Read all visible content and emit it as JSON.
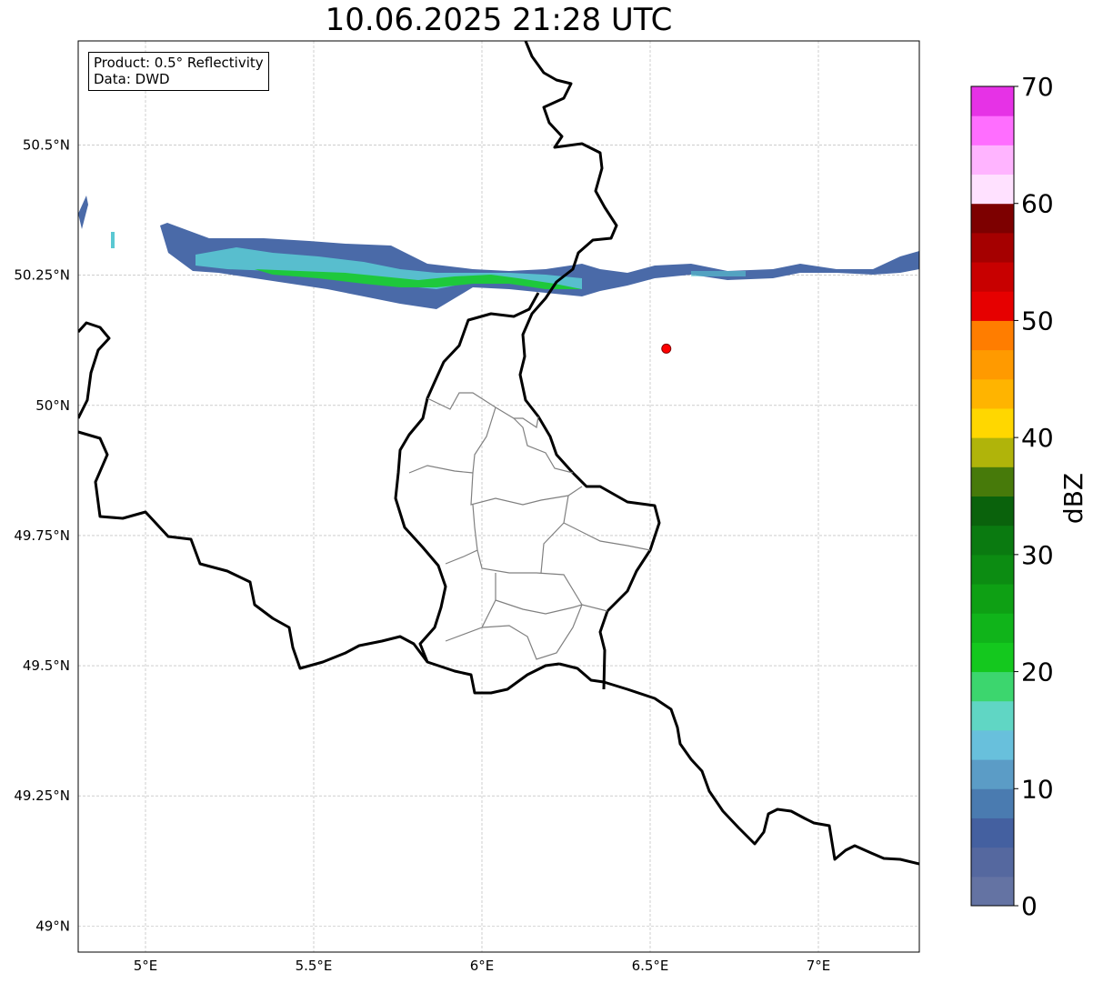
{
  "title": "10.06.2025 21:28 UTC",
  "info": {
    "product": "Product: 0.5° Reflectivity",
    "data_source": "Data: DWD"
  },
  "axes": {
    "lon_ticks": [
      {
        "value": 5.0,
        "label": "5°E"
      },
      {
        "value": 5.5,
        "label": "5.5°E"
      },
      {
        "value": 6.0,
        "label": "6°E"
      },
      {
        "value": 6.5,
        "label": "6.5°E"
      },
      {
        "value": 7.0,
        "label": "7°E"
      }
    ],
    "lat_ticks": [
      {
        "value": 50.5,
        "label": "50.5°N"
      },
      {
        "value": 50.25,
        "label": "50.25°N"
      },
      {
        "value": 50.0,
        "label": "50°N"
      },
      {
        "value": 49.75,
        "label": "49.75°N"
      },
      {
        "value": 49.5,
        "label": "49.5°N"
      },
      {
        "value": 49.25,
        "label": "49.25°N"
      },
      {
        "value": 49.0,
        "label": "49°N"
      }
    ],
    "lon_range": [
      4.8,
      7.3
    ],
    "lat_range": [
      48.95,
      50.7
    ],
    "grid": true
  },
  "colorbar": {
    "label": "dBZ",
    "min": 0,
    "max": 70,
    "step": 2.5,
    "tick_labels": [
      {
        "value": 0,
        "label": "0"
      },
      {
        "value": 10,
        "label": "10"
      },
      {
        "value": 20,
        "label": "20"
      },
      {
        "value": 30,
        "label": "30"
      },
      {
        "value": 40,
        "label": "40"
      },
      {
        "value": 50,
        "label": "50"
      },
      {
        "value": 60,
        "label": "60"
      },
      {
        "value": 70,
        "label": "70"
      }
    ],
    "colors": [
      "#6473a3",
      "#55689f",
      "#4460a0",
      "#4a7bb0",
      "#5b9cc6",
      "#68c0dc",
      "#60d6c4",
      "#3cd66e",
      "#14c81e",
      "#10b41a",
      "#0ea014",
      "#0c8c12",
      "#0a7a10",
      "#0a620c",
      "#477a0a",
      "#b0b40a",
      "#ffd700",
      "#ffb400",
      "#ff9a00",
      "#ff7d00",
      "#e60000",
      "#c80000",
      "#a50000",
      "#7d0000",
      "#ffe1ff",
      "#ffb4ff",
      "#ff6eff",
      "#e632e6"
    ]
  },
  "station": {
    "lon": 6.548,
    "lat": 50.109,
    "color": "#ff0000"
  },
  "echo_band": {
    "description_colors": {
      "weak": "#4a6aa8",
      "light": "#5ac8d2",
      "moderate": "#1ec83c"
    }
  }
}
